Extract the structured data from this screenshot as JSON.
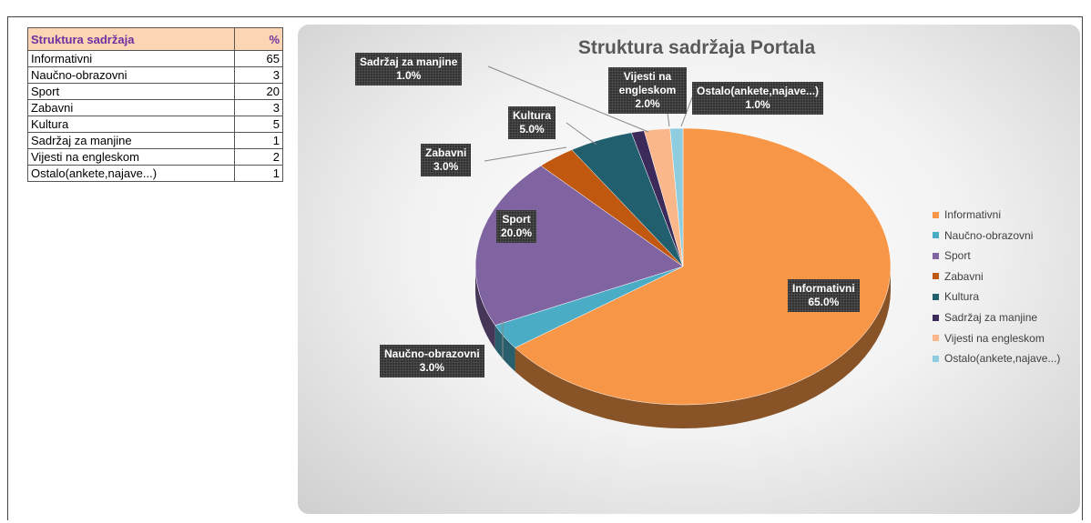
{
  "table": {
    "header": [
      "Struktura sadržaja",
      "%"
    ],
    "rows": [
      [
        "Informativni",
        "65"
      ],
      [
        "Naučno-obrazovni",
        "3"
      ],
      [
        "Sport",
        "20"
      ],
      [
        "Zabavni",
        "3"
      ],
      [
        "Kultura",
        "5"
      ],
      [
        "Sadržaj za manjine",
        "1"
      ],
      [
        "Vijesti na engleskom",
        "2"
      ],
      [
        "Ostalo(ankete,najave...)",
        "1"
      ]
    ]
  },
  "chart_data": {
    "type": "pie",
    "title": "Struktura sadržaja Portala",
    "categories": [
      "Informativni",
      "Naučno-obrazovni",
      "Sport",
      "Zabavni",
      "Kultura",
      "Sadržaj za manjine",
      "Vijesti na engleskom",
      "Ostalo(ankete,najave...)"
    ],
    "values": [
      65,
      3,
      20,
      3,
      5,
      1,
      2,
      1
    ],
    "value_labels": [
      "65.0%",
      "3.0%",
      "20.0%",
      "3.0%",
      "5.0%",
      "1.0%",
      "2.0%",
      "1.0%"
    ],
    "colors": [
      "#f79646",
      "#4bacc6",
      "#8064a2",
      "#c0580f",
      "#215f6e",
      "#3b2a5a",
      "#fab88a",
      "#8ecde0"
    ],
    "legend": "right"
  }
}
